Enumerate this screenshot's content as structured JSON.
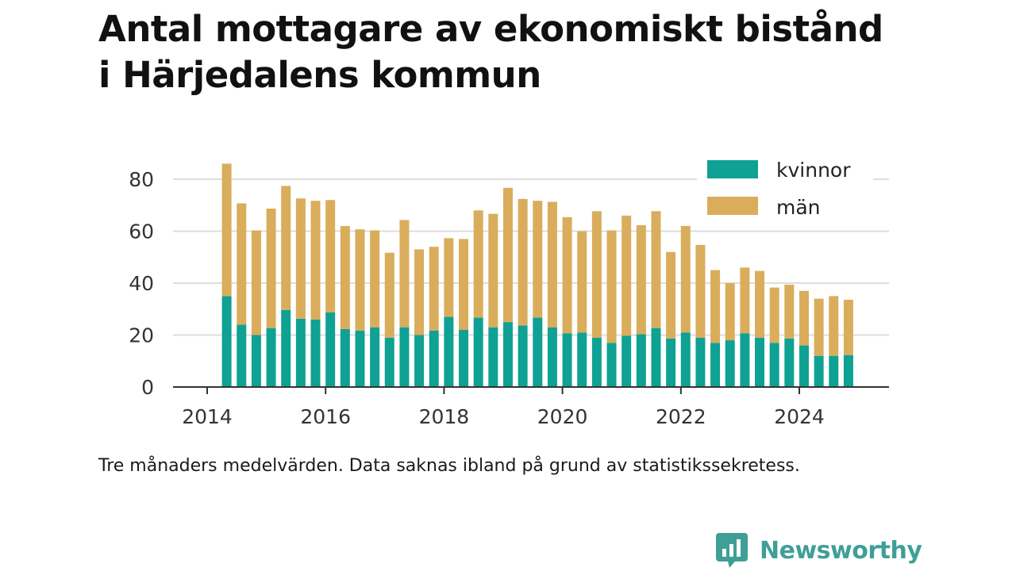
{
  "title": {
    "line1": "Antal mottagare av ekonomiskt bistånd",
    "line2": "i Härjedalens kommun"
  },
  "caption": "Tre månaders medelvärden. Data saknas ibland på grund av statistikssekretess.",
  "brand": {
    "name": "Newsworthy",
    "icon": "newsworthy-logo-icon",
    "color": "#3f9f97"
  },
  "colors": {
    "kvinnor": "#0fa193",
    "man": "#d9ad5b",
    "grid": "#dddddd",
    "axis": "#333333"
  },
  "chart_data": {
    "type": "bar",
    "stacked": true,
    "title": "Antal mottagare av ekonomiskt bistånd i Härjedalens kommun",
    "xlabel": "",
    "ylabel": "",
    "ylim": [
      0,
      88
    ],
    "xlim": [
      2013.6,
      2025.4
    ],
    "yticks": [
      0,
      20,
      40,
      60,
      80
    ],
    "xticks": [
      "2014",
      "2016",
      "2018",
      "2020",
      "2022",
      "2024"
    ],
    "grid": true,
    "legend_position": "top-right",
    "x": [
      2014.33,
      2014.58,
      2014.83,
      2015.08,
      2015.33,
      2015.58,
      2015.83,
      2016.08,
      2016.33,
      2016.58,
      2016.83,
      2017.08,
      2017.33,
      2017.58,
      2017.83,
      2018.08,
      2018.33,
      2018.58,
      2018.83,
      2019.08,
      2019.33,
      2019.58,
      2019.83,
      2020.08,
      2020.33,
      2020.58,
      2020.83,
      2021.08,
      2021.33,
      2021.58,
      2021.83,
      2022.08,
      2022.33,
      2022.58,
      2022.83,
      2023.08,
      2023.33,
      2023.58,
      2023.83,
      2024.08,
      2024.33,
      2024.58,
      2024.83
    ],
    "series": [
      {
        "name": "kvinnor",
        "values": [
          35,
          24,
          20,
          22.7,
          29.7,
          26.3,
          26,
          28.7,
          22.3,
          21.7,
          23,
          19,
          23,
          20,
          21.7,
          27,
          22,
          26.7,
          23,
          25,
          23.7,
          26.7,
          23,
          20.7,
          21,
          19,
          17,
          19.7,
          20.3,
          22.7,
          18.7,
          21,
          19,
          17,
          18,
          20.7,
          19,
          17,
          18.7,
          16,
          12,
          12,
          12.3
        ]
      },
      {
        "name": "män",
        "values": [
          51,
          46.7,
          40.3,
          46,
          47.7,
          46.3,
          45.7,
          43.3,
          39.7,
          39,
          37.3,
          32.7,
          41.3,
          33,
          32.3,
          30.3,
          35,
          41.3,
          43.7,
          51.7,
          48.7,
          45,
          48.3,
          44.7,
          39,
          48.7,
          43.3,
          46.3,
          42,
          45,
          33.3,
          41,
          35.7,
          28,
          22,
          25.3,
          25.7,
          21.3,
          20.7,
          21,
          22,
          23,
          21.3
        ]
      }
    ]
  }
}
